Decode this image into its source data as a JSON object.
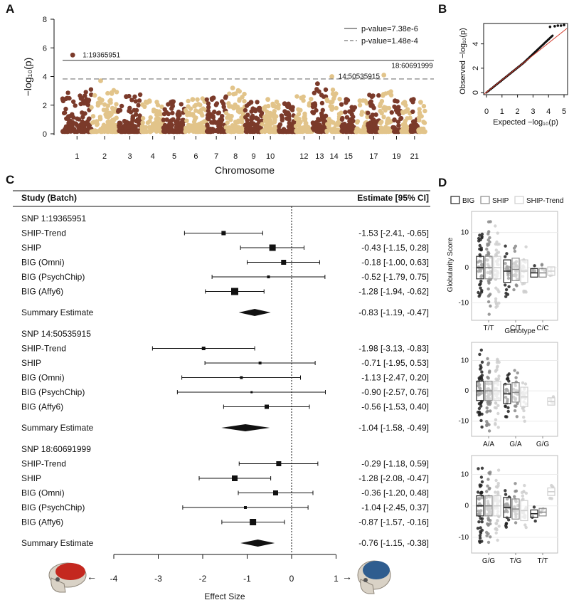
{
  "panels": [
    "A",
    "B",
    "C",
    "D"
  ],
  "chart_data": [
    {
      "type": "scatter",
      "panel": "A",
      "subtype": "manhattan",
      "xlabel": "Chromosome",
      "ylabel": "−log₁₀(p)",
      "ylim": [
        0,
        8
      ],
      "yticks": [
        "0",
        "2",
        "4",
        "6",
        "8"
      ],
      "x_tick_labels": [
        "1",
        "2",
        "3",
        "4",
        "5",
        "6",
        "7",
        "8",
        "9",
        "10",
        "12",
        "13",
        "14",
        "15",
        "17",
        "19",
        "21"
      ],
      "colors": {
        "odd": "#7b3a2a",
        "even": "#e2c48a"
      },
      "thresholds": [
        {
          "label": "p-value=7.38e-6",
          "y": 5.13,
          "style": "solid"
        },
        {
          "label": "p-value=1.48e-4",
          "y": 3.83,
          "style": "dashed"
        }
      ],
      "annotations": [
        {
          "label": "1:19365951",
          "chromosome": 1,
          "y": 5.5
        },
        {
          "label": "14:50535915",
          "chromosome": 14,
          "y": 4.0
        },
        {
          "label": "18:60691999",
          "chromosome": 18,
          "y": 4.1
        }
      ],
      "chromosome_peaks": [
        5.5,
        3.7,
        2.6,
        2.3,
        2.2,
        2.4,
        2.5,
        3.2,
        2.2,
        2.4,
        2.1,
        2.5,
        3.5,
        4.0,
        2.4,
        2.3,
        2.6,
        4.1,
        2.3,
        2.2,
        2.4,
        2.2
      ]
    },
    {
      "type": "scatter",
      "panel": "B",
      "subtype": "qq",
      "xlabel": "Expected  −log₁₀(p)",
      "ylabel": "Observed  −log₁₀(p)",
      "xlim": [
        0,
        5
      ],
      "ylim": [
        0,
        5.5
      ],
      "xticks": [
        "0",
        "1",
        "2",
        "3",
        "4",
        "5"
      ],
      "yticks": [
        "0",
        "2",
        "4"
      ]
    },
    {
      "type": "forest",
      "panel": "C",
      "header_left": "Study (Batch)",
      "header_right": "Estimate [95% CI]",
      "xlabel": "Effect Size",
      "xlim": [
        -4,
        1
      ],
      "xticks": [
        "-4",
        "-3",
        "-2",
        "-1",
        "0",
        "1"
      ],
      "arrow_left": "←",
      "arrow_right": "→",
      "groups": [
        {
          "title": "SNP 1:19365951",
          "rows": [
            {
              "label": "SHIP-Trend",
              "est": -1.53,
              "lo": -2.41,
              "hi": -0.65,
              "text": "-1.53 [-2.41, -0.65]",
              "w": 6
            },
            {
              "label": "SHIP",
              "est": -0.43,
              "lo": -1.15,
              "hi": 0.28,
              "text": "-0.43 [-1.15,  0.28]",
              "w": 9
            },
            {
              "label": "BIG (Omni)",
              "est": -0.18,
              "lo": -1.0,
              "hi": 0.63,
              "text": "-0.18 [-1.00,  0.63]",
              "w": 7
            },
            {
              "label": "BIG (PsychChip)",
              "est": -0.52,
              "lo": -1.79,
              "hi": 0.75,
              "text": "-0.52 [-1.79,  0.75]",
              "w": 4
            },
            {
              "label": "BIG (Affy6)",
              "est": -1.28,
              "lo": -1.94,
              "hi": -0.62,
              "text": "-1.28 [-1.94, -0.62]",
              "w": 10
            }
          ],
          "summary": {
            "label": "Summary Estimate",
            "est": -0.83,
            "lo": -1.19,
            "hi": -0.47,
            "text": "-0.83 [-1.19, -0.47]"
          }
        },
        {
          "title": "SNP 14:50535915",
          "rows": [
            {
              "label": "SHIP-Trend",
              "est": -1.98,
              "lo": -3.13,
              "hi": -0.83,
              "text": "-1.98 [-3.13, -0.83]",
              "w": 5
            },
            {
              "label": "SHIP",
              "est": -0.71,
              "lo": -1.95,
              "hi": 0.53,
              "text": "-0.71 [-1.95,  0.53]",
              "w": 4
            },
            {
              "label": "BIG (Omni)",
              "est": -1.13,
              "lo": -2.47,
              "hi": 0.2,
              "text": "-1.13 [-2.47,  0.20]",
              "w": 4
            },
            {
              "label": "BIG (PsychChip)",
              "est": -0.9,
              "lo": -2.57,
              "hi": 0.76,
              "text": "-0.90 [-2.57,  0.76]",
              "w": 3
            },
            {
              "label": "BIG (Affy6)",
              "est": -0.56,
              "lo": -1.53,
              "hi": 0.4,
              "text": "-0.56 [-1.53,  0.40]",
              "w": 6
            }
          ],
          "summary": {
            "label": "Summary Estimate",
            "est": -1.04,
            "lo": -1.58,
            "hi": -0.49,
            "text": "-1.04 [-1.58, -0.49]"
          }
        },
        {
          "title": "SNP 18:60691999",
          "rows": [
            {
              "label": "SHIP-Trend",
              "est": -0.29,
              "lo": -1.18,
              "hi": 0.59,
              "text": "-0.29 [-1.18,  0.59]",
              "w": 7
            },
            {
              "label": "SHIP",
              "est": -1.28,
              "lo": -2.08,
              "hi": -0.47,
              "text": "-1.28 [-2.08, -0.47]",
              "w": 8
            },
            {
              "label": "BIG (Omni)",
              "est": -0.36,
              "lo": -1.2,
              "hi": 0.48,
              "text": "-0.36 [-1.20,  0.48]",
              "w": 7
            },
            {
              "label": "BIG (PsychChip)",
              "est": -1.04,
              "lo": -2.45,
              "hi": 0.37,
              "text": "-1.04 [-2.45,  0.37]",
              "w": 4
            },
            {
              "label": "BIG (Affy6)",
              "est": -0.87,
              "lo": -1.57,
              "hi": -0.16,
              "text": "-0.87 [-1.57, -0.16]",
              "w": 9
            }
          ],
          "summary": {
            "label": "Summary Estimate",
            "est": -0.76,
            "lo": -1.15,
            "hi": -0.38,
            "text": "-0.76 [-1.15, -0.38]"
          }
        }
      ]
    },
    {
      "type": "box",
      "panel": "D",
      "ylabel": "Globularity Score",
      "xlabel": "Genotype",
      "ylim": [
        -15,
        16
      ],
      "yticks": [
        "10",
        "0",
        "-10"
      ],
      "legend": [
        "BIG",
        "SHIP",
        "SHIP-Trend"
      ],
      "series_colors": [
        "#222222",
        "#8a8a8a",
        "#cfcfcf"
      ],
      "subplots": [
        {
          "genotypes": [
            "T/T",
            "C/T",
            "C/C"
          ],
          "medians": [
            [
              0,
              0,
              0
            ],
            [
              -1,
              -0.5,
              -1
            ],
            [
              -1.5,
              -1.5,
              -1
            ]
          ],
          "show_xlabel": true
        },
        {
          "genotypes": [
            "A/A",
            "G/A",
            "G/G"
          ],
          "medians": [
            [
              0,
              0,
              0
            ],
            [
              -1,
              -0.5,
              -2
            ],
            [
              null,
              null,
              -3.5
            ]
          ],
          "show_xlabel": false
        },
        {
          "genotypes": [
            "G/G",
            "T/G",
            "T/T"
          ],
          "medians": [
            [
              0,
              0,
              0
            ],
            [
              -0.5,
              -1,
              -1.5
            ],
            [
              -2.5,
              -2,
              4.5
            ]
          ],
          "show_xlabel": false
        }
      ]
    }
  ]
}
